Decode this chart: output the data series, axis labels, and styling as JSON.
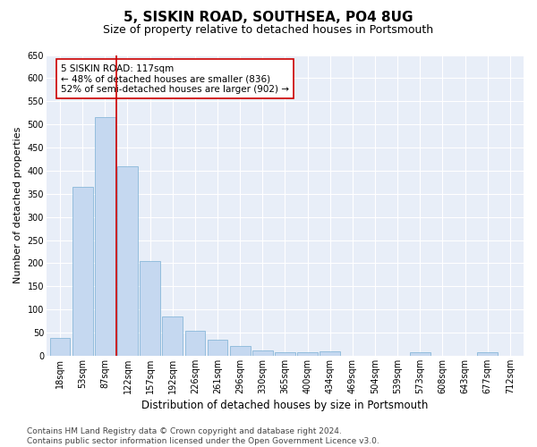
{
  "title": "5, SISKIN ROAD, SOUTHSEA, PO4 8UG",
  "subtitle": "Size of property relative to detached houses in Portsmouth",
  "xlabel": "Distribution of detached houses by size in Portsmouth",
  "ylabel": "Number of detached properties",
  "categories": [
    "18sqm",
    "53sqm",
    "87sqm",
    "122sqm",
    "157sqm",
    "192sqm",
    "226sqm",
    "261sqm",
    "296sqm",
    "330sqm",
    "365sqm",
    "400sqm",
    "434sqm",
    "469sqm",
    "504sqm",
    "539sqm",
    "573sqm",
    "608sqm",
    "643sqm",
    "677sqm",
    "712sqm"
  ],
  "values": [
    38,
    365,
    515,
    410,
    205,
    84,
    54,
    35,
    22,
    11,
    8,
    8,
    9,
    0,
    0,
    0,
    7,
    0,
    0,
    7,
    0
  ],
  "bar_color": "#c5d8f0",
  "bar_edge_color": "#7aafd4",
  "vline_x_index": 3,
  "vline_color": "#cc0000",
  "annotation_text": "5 SISKIN ROAD: 117sqm\n← 48% of detached houses are smaller (836)\n52% of semi-detached houses are larger (902) →",
  "annotation_box_color": "#ffffff",
  "annotation_box_edge_color": "#cc0000",
  "ylim": [
    0,
    650
  ],
  "yticks": [
    0,
    50,
    100,
    150,
    200,
    250,
    300,
    350,
    400,
    450,
    500,
    550,
    600,
    650
  ],
  "background_color": "#e8eef8",
  "footer_line1": "Contains HM Land Registry data © Crown copyright and database right 2024.",
  "footer_line2": "Contains public sector information licensed under the Open Government Licence v3.0.",
  "title_fontsize": 11,
  "subtitle_fontsize": 9,
  "xlabel_fontsize": 8.5,
  "ylabel_fontsize": 8,
  "tick_fontsize": 7,
  "annot_fontsize": 7.5,
  "footer_fontsize": 6.5
}
